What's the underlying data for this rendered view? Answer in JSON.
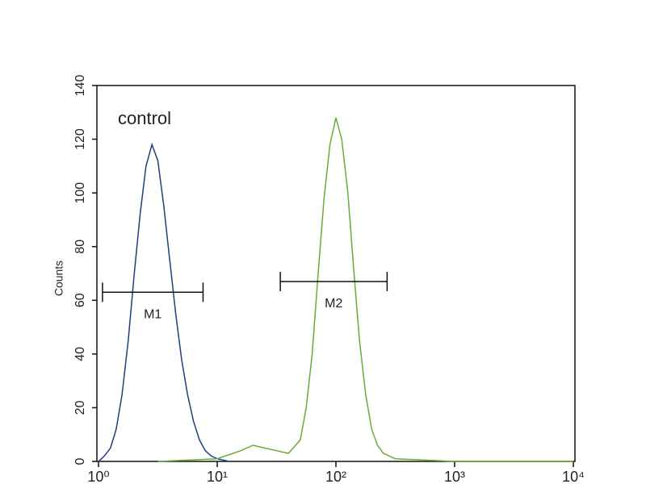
{
  "chart_data": {
    "type": "histogram-overlay",
    "y_label": "Counts",
    "annotation": "control",
    "xscale": "log",
    "xlim": [
      1,
      10000
    ],
    "xticks": [
      {
        "value": 1,
        "label": "10⁰"
      },
      {
        "value": 10,
        "label": "10¹"
      },
      {
        "value": 100,
        "label": "10²"
      },
      {
        "value": 1000,
        "label": "10³"
      },
      {
        "value": 10000,
        "label": "10⁴"
      }
    ],
    "ylim": [
      0,
      140
    ],
    "yticks": [
      0,
      20,
      40,
      60,
      80,
      100,
      120,
      140
    ],
    "series": [
      {
        "color": "#1f3f7a",
        "x": [
          1,
          1.12,
          1.26,
          1.41,
          1.58,
          1.78,
          2.0,
          2.24,
          2.51,
          2.82,
          3.16,
          3.55,
          3.98,
          4.47,
          5.01,
          5.62,
          6.31,
          7.08,
          7.94,
          8.91,
          10,
          12.6
        ],
        "values": [
          0,
          2,
          5,
          12,
          25,
          45,
          70,
          92,
          110,
          118,
          112,
          95,
          75,
          55,
          38,
          25,
          15,
          8,
          4,
          2,
          1,
          0
        ]
      },
      {
        "color": "#6aaa3a",
        "x": [
          3.16,
          10,
          15.8,
          20,
          25.1,
          31.6,
          39.8,
          50.1,
          56.2,
          63.1,
          70.8,
          79.4,
          89.1,
          100,
          112,
          126,
          141,
          158,
          178,
          200,
          224,
          251,
          316,
          1000,
          10000
        ],
        "values": [
          0,
          1,
          4,
          6,
          5,
          4,
          3,
          8,
          20,
          40,
          70,
          98,
          118,
          128,
          120,
          100,
          72,
          45,
          25,
          12,
          6,
          3,
          1,
          0,
          0
        ]
      }
    ],
    "markers": [
      {
        "label": "M1",
        "range": [
          1.08,
          7.6
        ],
        "y": 63
      },
      {
        "label": "M2",
        "range": [
          34,
          270
        ],
        "y": 67
      }
    ]
  }
}
